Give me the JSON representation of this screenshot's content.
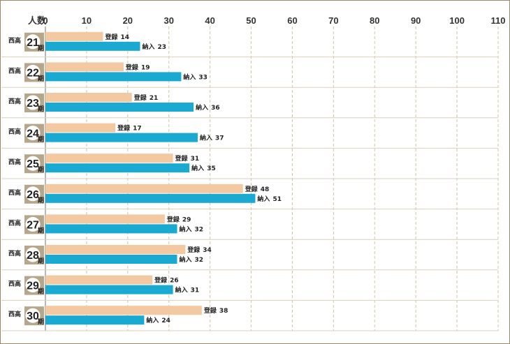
{
  "chart_data": {
    "type": "bar",
    "orientation": "horizontal",
    "y_axis_title": "人数",
    "xlim": [
      0,
      110
    ],
    "x_ticks": [
      0,
      10,
      20,
      30,
      40,
      50,
      60,
      70,
      80,
      90,
      100,
      110
    ],
    "grid": true,
    "category_prefix": "西高",
    "category_suffix": "期",
    "categories": [
      "21",
      "22",
      "23",
      "24",
      "25",
      "26",
      "27",
      "28",
      "29",
      "30"
    ],
    "series": [
      {
        "name": "登録",
        "color": "#f2c9a0",
        "values": [
          14,
          19,
          21,
          17,
          31,
          48,
          29,
          34,
          26,
          38
        ]
      },
      {
        "name": "納入",
        "color": "#1aa9d0",
        "values": [
          23,
          33,
          36,
          37,
          35,
          51,
          32,
          32,
          31,
          24
        ]
      }
    ]
  }
}
